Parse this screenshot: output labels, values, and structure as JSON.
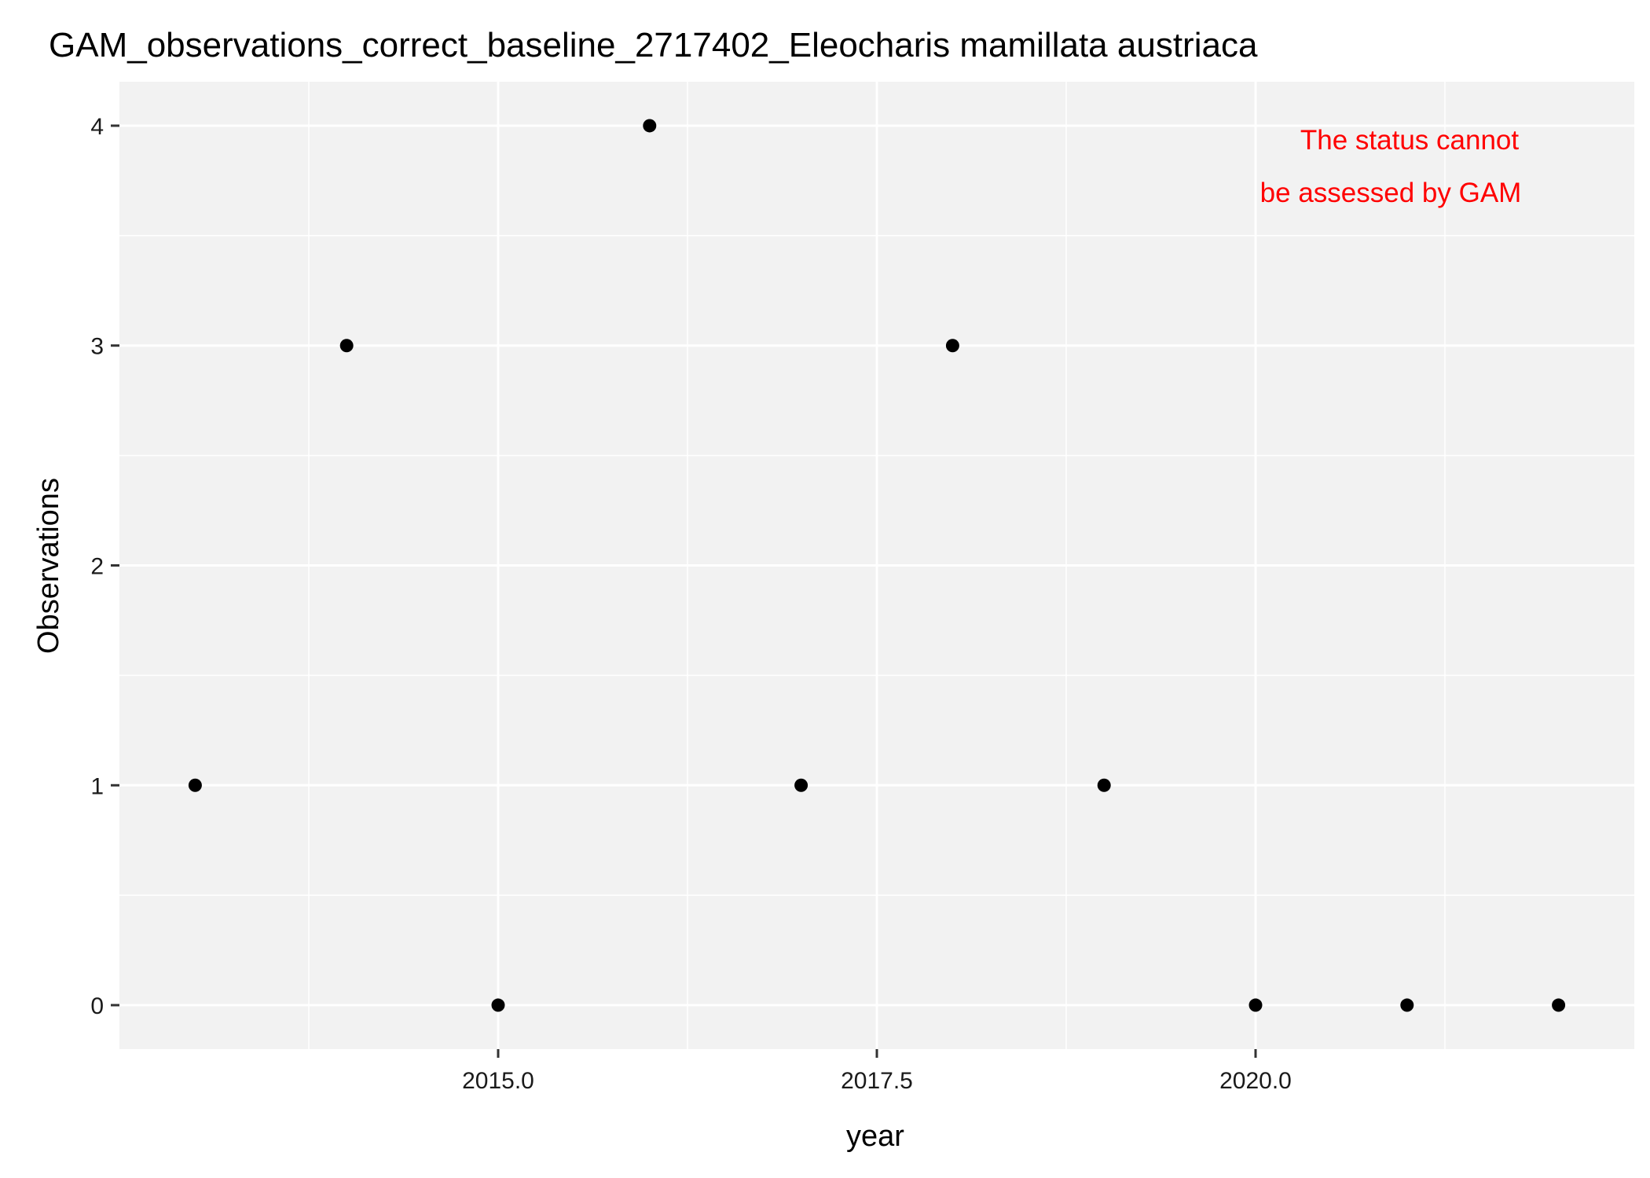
{
  "chart_data": {
    "type": "scatter",
    "title": "GAM_observations_correct_baseline_2717402_Eleocharis mamillata austriaca",
    "xlabel": "year",
    "ylabel": "Observations",
    "x": [
      2013,
      2014,
      2015,
      2016,
      2017,
      2018,
      2019,
      2020,
      2021,
      2022
    ],
    "y": [
      1,
      3,
      0,
      4,
      1,
      3,
      1,
      0,
      0,
      0
    ],
    "xlim": [
      2012.5,
      2022.5
    ],
    "ylim": [
      -0.2,
      4.2
    ],
    "xticks": [
      2015,
      2017.5,
      2020
    ],
    "xtick_labels": [
      "2015.0",
      "2017.5",
      "2020.0"
    ],
    "yticks": [
      0,
      1,
      2,
      3,
      4
    ],
    "ytick_labels": [
      "0",
      "1",
      "2",
      "3",
      "4"
    ],
    "grid": true,
    "annotation": {
      "lines": [
        "The status cannot",
        "be assessed by GAM"
      ],
      "color": "#ff0000",
      "placement": "top-right"
    },
    "colors": {
      "panel_background": "#f2f2f2",
      "grid": "#ffffff",
      "points": "#000000"
    }
  }
}
